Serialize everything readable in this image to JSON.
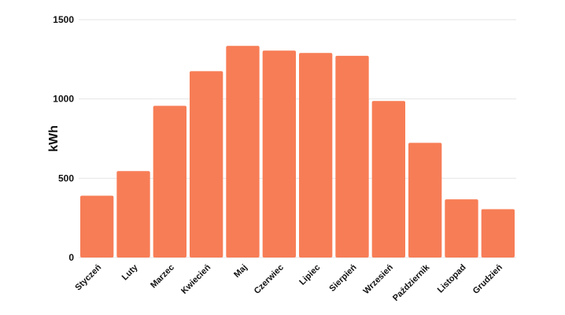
{
  "chart_data": {
    "type": "bar",
    "title": "",
    "xlabel": "",
    "ylabel": "kWh",
    "categories": [
      "Styczeń",
      "Luty",
      "Marzec",
      "Kwiecień",
      "Maj",
      "Czerwiec",
      "Lipiec",
      "Sierpień",
      "Wrzesień",
      "Październik",
      "Listopad",
      "Grudzień"
    ],
    "values": [
      390,
      545,
      957,
      1175,
      1335,
      1305,
      1290,
      1272,
      987,
      723,
      367,
      305
    ],
    "ylim": [
      0,
      1500
    ],
    "yticks": [
      0,
      500,
      1000,
      1500
    ],
    "grid": true,
    "bar_color": "#f77d56",
    "legend": "none"
  }
}
